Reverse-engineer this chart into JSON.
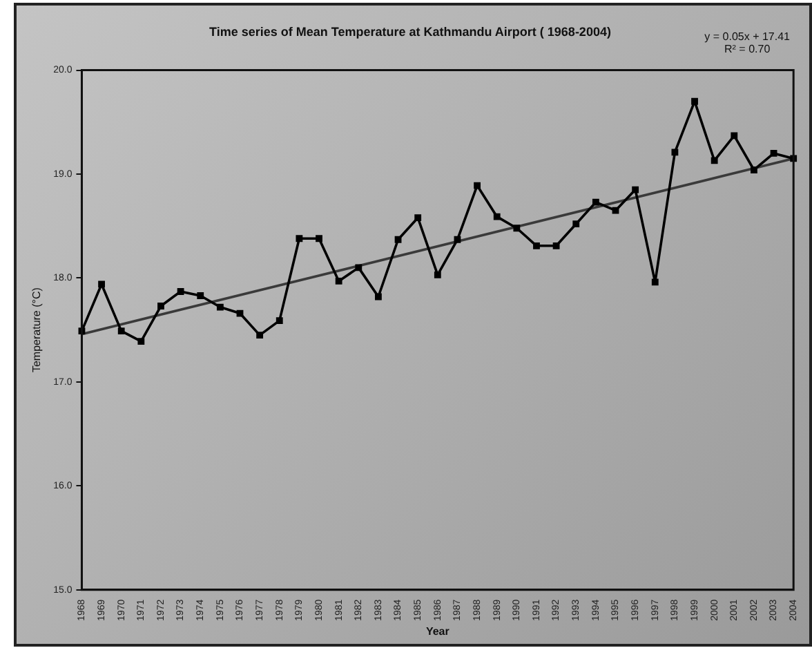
{
  "chart_data": {
    "type": "line",
    "title": "Time series of Mean Temperature at Kathmandu Airport ( 1968-2004)",
    "xlabel": "Year",
    "ylabel": "Temperature (°C)",
    "annotations": [
      "y = 0.05x + 17.41",
      "R² = 0.70"
    ],
    "categories": [
      "1968",
      "1969",
      "1970",
      "1971",
      "1972",
      "1973",
      "1974",
      "1975",
      "1976",
      "1977",
      "1978",
      "1979",
      "1980",
      "1981",
      "1982",
      "1983",
      "1984",
      "1985",
      "1986",
      "1987",
      "1988",
      "1989",
      "1990",
      "1991",
      "1992",
      "1993",
      "1994",
      "1995",
      "1996",
      "1997",
      "1998",
      "1999",
      "2000",
      "2001",
      "2002",
      "2003",
      "2004"
    ],
    "series": [
      {
        "color": "#000000",
        "marker": "square",
        "values": [
          17.49,
          17.94,
          17.49,
          17.39,
          17.73,
          17.87,
          17.83,
          17.72,
          17.66,
          17.45,
          17.59,
          18.38,
          18.38,
          17.97,
          18.1,
          17.82,
          18.37,
          18.58,
          18.03,
          18.37,
          18.89,
          18.59,
          18.48,
          18.31,
          18.31,
          18.52,
          18.73,
          18.65,
          18.85,
          17.96,
          19.21,
          19.7,
          19.13,
          19.37,
          19.04,
          19.2,
          19.15
        ]
      },
      {
        "type": "line",
        "color": "#3a3a3a",
        "marker": "none",
        "values": [
          17.46,
          null,
          null,
          null,
          null,
          null,
          null,
          null,
          null,
          null,
          null,
          null,
          null,
          null,
          null,
          null,
          null,
          null,
          null,
          null,
          null,
          null,
          null,
          null,
          null,
          null,
          null,
          null,
          null,
          null,
          null,
          null,
          null,
          null,
          null,
          null,
          19.15
        ]
      }
    ],
    "ylim": [
      15,
      20
    ],
    "yticks": [
      {
        "value": 15,
        "label": "15.0"
      },
      {
        "value": 16,
        "label": "16.0"
      },
      {
        "value": 17,
        "label": "17.0"
      },
      {
        "value": 18,
        "label": "18.0"
      },
      {
        "value": 19,
        "label": "19.0"
      },
      {
        "value": 20,
        "label": "20.0"
      }
    ],
    "grid": false,
    "legend": false,
    "line_style": "solid"
  }
}
